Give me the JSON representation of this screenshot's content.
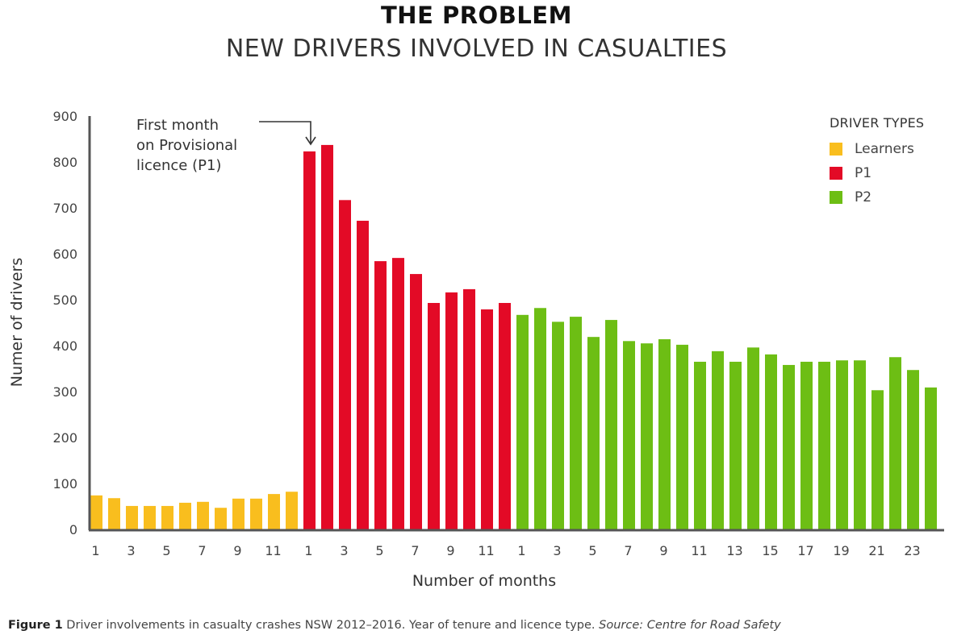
{
  "header": {
    "title": "THE PROBLEM",
    "subtitle": "NEW DRIVERS INVOLVED IN CASUALTIES"
  },
  "caption": {
    "figure_label": "Figure 1",
    "text": " Driver involvements in casualty crashes NSW 2012–2016. Year of tenure and licence type. ",
    "source": "Source: Centre for Road Safety"
  },
  "chart_data": {
    "type": "bar",
    "title": "NEW DRIVERS INVOLVED IN CASUALTIES",
    "xlabel": "Number of months",
    "ylabel": "Numer of drivers",
    "ylim": [
      0,
      900
    ],
    "yticks": [
      0,
      100,
      200,
      300,
      400,
      500,
      600,
      700,
      800,
      900
    ],
    "grid": false,
    "legend": {
      "title": "DRIVER TYPES",
      "placement": "top-right",
      "entries": [
        "Learners",
        "P1",
        "P2"
      ]
    },
    "annotation": {
      "lines": [
        "First month",
        "on Provisional",
        "licence (P1)"
      ],
      "target": "P1 month 1"
    },
    "series": [
      {
        "name": "Learners",
        "color": "#F9BE1E",
        "months": [
          1,
          2,
          3,
          4,
          5,
          6,
          7,
          8,
          9,
          10,
          11,
          12
        ],
        "tick_labels": [
          "1",
          "",
          "3",
          "",
          "5",
          "",
          "7",
          "",
          "9",
          "",
          "11",
          ""
        ],
        "values": [
          74,
          68,
          51,
          51,
          51,
          58,
          60,
          47,
          67,
          67,
          77,
          82
        ]
      },
      {
        "name": "P1",
        "color": "#E30A26",
        "months": [
          1,
          2,
          3,
          4,
          5,
          6,
          7,
          8,
          9,
          10,
          11,
          12
        ],
        "tick_labels": [
          "1",
          "",
          "3",
          "",
          "5",
          "",
          "7",
          "",
          "9",
          "",
          "11",
          ""
        ],
        "values": [
          823,
          837,
          717,
          672,
          584,
          591,
          556,
          493,
          516,
          523,
          479,
          493
        ]
      },
      {
        "name": "P2",
        "color": "#6DBE14",
        "months": [
          1,
          2,
          3,
          4,
          5,
          6,
          7,
          8,
          9,
          10,
          11,
          12,
          13,
          14,
          15,
          16,
          17,
          18,
          19,
          20,
          21,
          22,
          23,
          24
        ],
        "tick_labels": [
          "1",
          "",
          "3",
          "",
          "5",
          "",
          "7",
          "",
          "9",
          "",
          "11",
          "",
          "13",
          "",
          "15",
          "",
          "17",
          "",
          "19",
          "",
          "21",
          "",
          "23",
          ""
        ],
        "values": [
          467,
          482,
          452,
          463,
          419,
          456,
          410,
          405,
          414,
          402,
          365,
          388,
          365,
          396,
          381,
          358,
          365,
          365,
          368,
          368,
          303,
          375,
          347,
          309
        ]
      }
    ]
  }
}
